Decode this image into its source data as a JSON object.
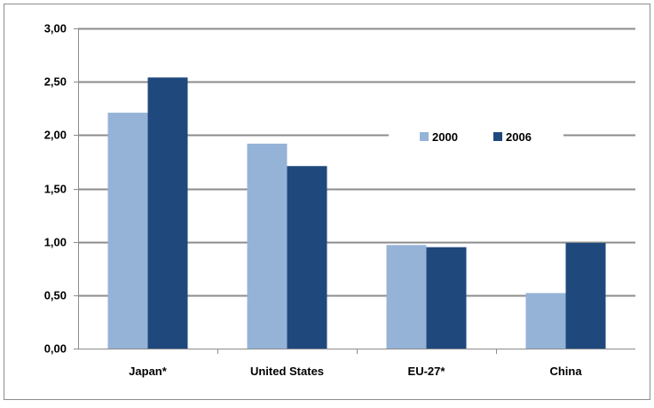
{
  "chart_data": {
    "type": "bar",
    "categories": [
      "Japan*",
      "United States",
      "EU-27*",
      "China"
    ],
    "series": [
      {
        "name": "2000",
        "values": [
          2.21,
          1.92,
          0.97,
          0.52
        ],
        "color": "#95b3d7"
      },
      {
        "name": "2006",
        "values": [
          2.54,
          1.71,
          0.95,
          0.99
        ],
        "color": "#1f497d"
      }
    ],
    "y_ticks": [
      "0,00",
      "0,50",
      "1,00",
      "1,50",
      "2,00",
      "2,50",
      "3,00"
    ],
    "ylim": [
      0,
      3
    ],
    "grid": true,
    "legend": "inside-top-right",
    "title": "",
    "xlabel": "",
    "ylabel": ""
  }
}
